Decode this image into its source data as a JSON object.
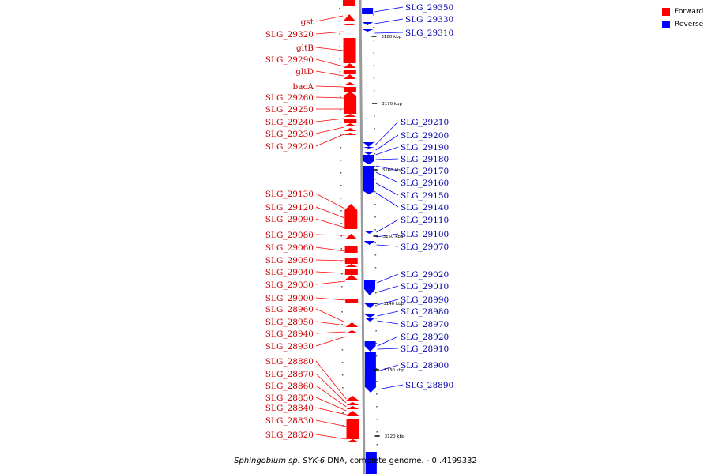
{
  "legend": {
    "forward_label": "Forward",
    "reverse_label": "Reverse",
    "forward_color": "#ff0000",
    "reverse_color": "#0000ff"
  },
  "caption": {
    "organism": "Sphingobium sp. SYK-6",
    "rest": "DNA, complete genome. - 0..4199332"
  },
  "scale_ticks": [
    "3180 kbp",
    "3170 kbp",
    "3160 kbp",
    "3150 kbp",
    "3140 kbp",
    "3130 kbp",
    "3120 kbp"
  ],
  "forward_genes": [
    "gst",
    "SLG_29320",
    "gltB",
    "SLG_29290",
    "gltD",
    "bacA",
    "SLG_29260",
    "SLG_29250",
    "SLG_29240",
    "SLG_29230",
    "SLG_29220",
    "SLG_29130",
    "SLG_29120",
    "SLG_29090",
    "SLG_29080",
    "SLG_29060",
    "SLG_29050",
    "SLG_29040",
    "SLG_29030",
    "SLG_29000",
    "SLG_28960",
    "SLG_28950",
    "SLG_28940",
    "SLG_28930",
    "SLG_28880",
    "SLG_28870",
    "SLG_28860",
    "SLG_28850",
    "SLG_28840",
    "SLG_28830",
    "SLG_28820"
  ],
  "reverse_genes": [
    "SLG_29350",
    "SLG_29330",
    "SLG_29310",
    "SLG_29210",
    "SLG_29200",
    "SLG_29190",
    "SLG_29180",
    "SLG_29170",
    "SLG_29160",
    "SLG_29150",
    "SLG_29140",
    "SLG_29110",
    "SLG_29100",
    "SLG_29070",
    "SLG_29020",
    "SLG_29010",
    "SLG_28990",
    "SLG_28980",
    "SLG_28970",
    "SLG_28920",
    "SLG_28910",
    "SLG_28900",
    "SLG_28890"
  ]
}
